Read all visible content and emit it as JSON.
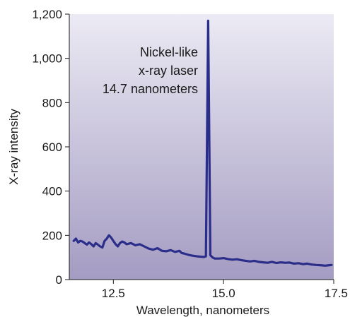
{
  "chart_data": {
    "type": "line",
    "xlabel": "Wavelength, nanometers",
    "ylabel": "X-ray intensity",
    "xlim": [
      11.5,
      17.5
    ],
    "ylim": [
      0,
      1200
    ],
    "x_ticks": [
      12.5,
      15.0,
      17.5
    ],
    "x_tick_labels": [
      "12.5",
      "15.0",
      "17.5"
    ],
    "y_ticks": [
      0,
      200,
      400,
      600,
      800,
      1000,
      1200
    ],
    "y_tick_labels": [
      "0",
      "200",
      "400",
      "600",
      "800",
      "1,000",
      "1,200"
    ],
    "grid": false,
    "annotation": [
      "Nickel-like",
      "x-ray laser",
      "14.7 nanometers"
    ],
    "colors": {
      "line": "#2b2d8a",
      "background_top": "#eceaf4",
      "background_bottom": "#a49cc2"
    },
    "series": [
      {
        "x": [
          11.6,
          11.65,
          11.7,
          11.75,
          11.8,
          11.85,
          11.9,
          11.95,
          12.0,
          12.05,
          12.1,
          12.15,
          12.2,
          12.25,
          12.3,
          12.35,
          12.4,
          12.45,
          12.5,
          12.55,
          12.6,
          12.65,
          12.7,
          12.75,
          12.8,
          12.9,
          13.0,
          13.1,
          13.2,
          13.3,
          13.4,
          13.5,
          13.6,
          13.7,
          13.8,
          13.9,
          14.0,
          14.05,
          14.1,
          14.2,
          14.3,
          14.4,
          14.5,
          14.55,
          14.6,
          14.65,
          14.7,
          14.75,
          14.8,
          14.9,
          15.0,
          15.1,
          15.2,
          15.3,
          15.4,
          15.5,
          15.6,
          15.7,
          15.8,
          15.9,
          16.0,
          16.1,
          16.2,
          16.3,
          16.4,
          16.5,
          16.6,
          16.7,
          16.8,
          16.9,
          17.0,
          17.1,
          17.2,
          17.3,
          17.4,
          17.45
        ],
        "y": [
          175,
          185,
          168,
          175,
          172,
          165,
          158,
          168,
          160,
          150,
          165,
          158,
          150,
          145,
          175,
          185,
          200,
          190,
          175,
          160,
          150,
          165,
          172,
          168,
          160,
          165,
          155,
          160,
          150,
          140,
          135,
          142,
          130,
          128,
          133,
          125,
          130,
          120,
          118,
          112,
          108,
          105,
          103,
          102,
          105,
          1170,
          110,
          100,
          95,
          95,
          97,
          93,
          90,
          92,
          88,
          85,
          82,
          85,
          80,
          78,
          76,
          80,
          75,
          78,
          76,
          77,
          72,
          74,
          70,
          72,
          68,
          66,
          65,
          63,
          65,
          66
        ]
      }
    ]
  }
}
